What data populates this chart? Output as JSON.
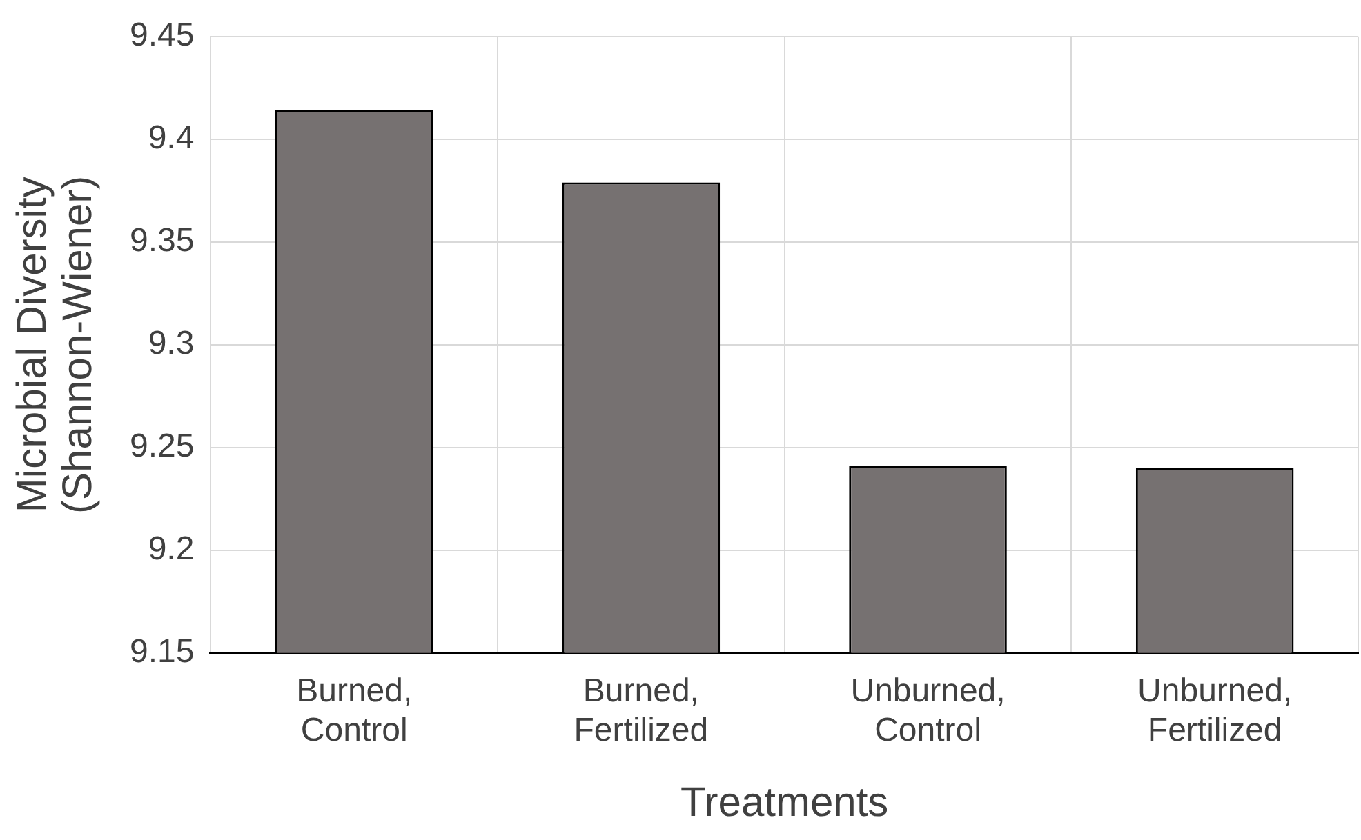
{
  "chart_data": {
    "type": "bar",
    "xlabel": "Treatments",
    "ylabel": "Microbial Diversity (Shannon-Wiener)",
    "categories": [
      "Burned, Control",
      "Burned, Fertilized",
      "Unburned, Control",
      "Unburned, Fertilized"
    ],
    "values": [
      9.414,
      9.379,
      9.241,
      9.24
    ],
    "color": "#767171",
    "ylim": [
      9.15,
      9.45
    ],
    "yticks": [
      9.15,
      9.2,
      9.25,
      9.3,
      9.35,
      9.4,
      9.45
    ],
    "grid": true,
    "legend": false
  }
}
